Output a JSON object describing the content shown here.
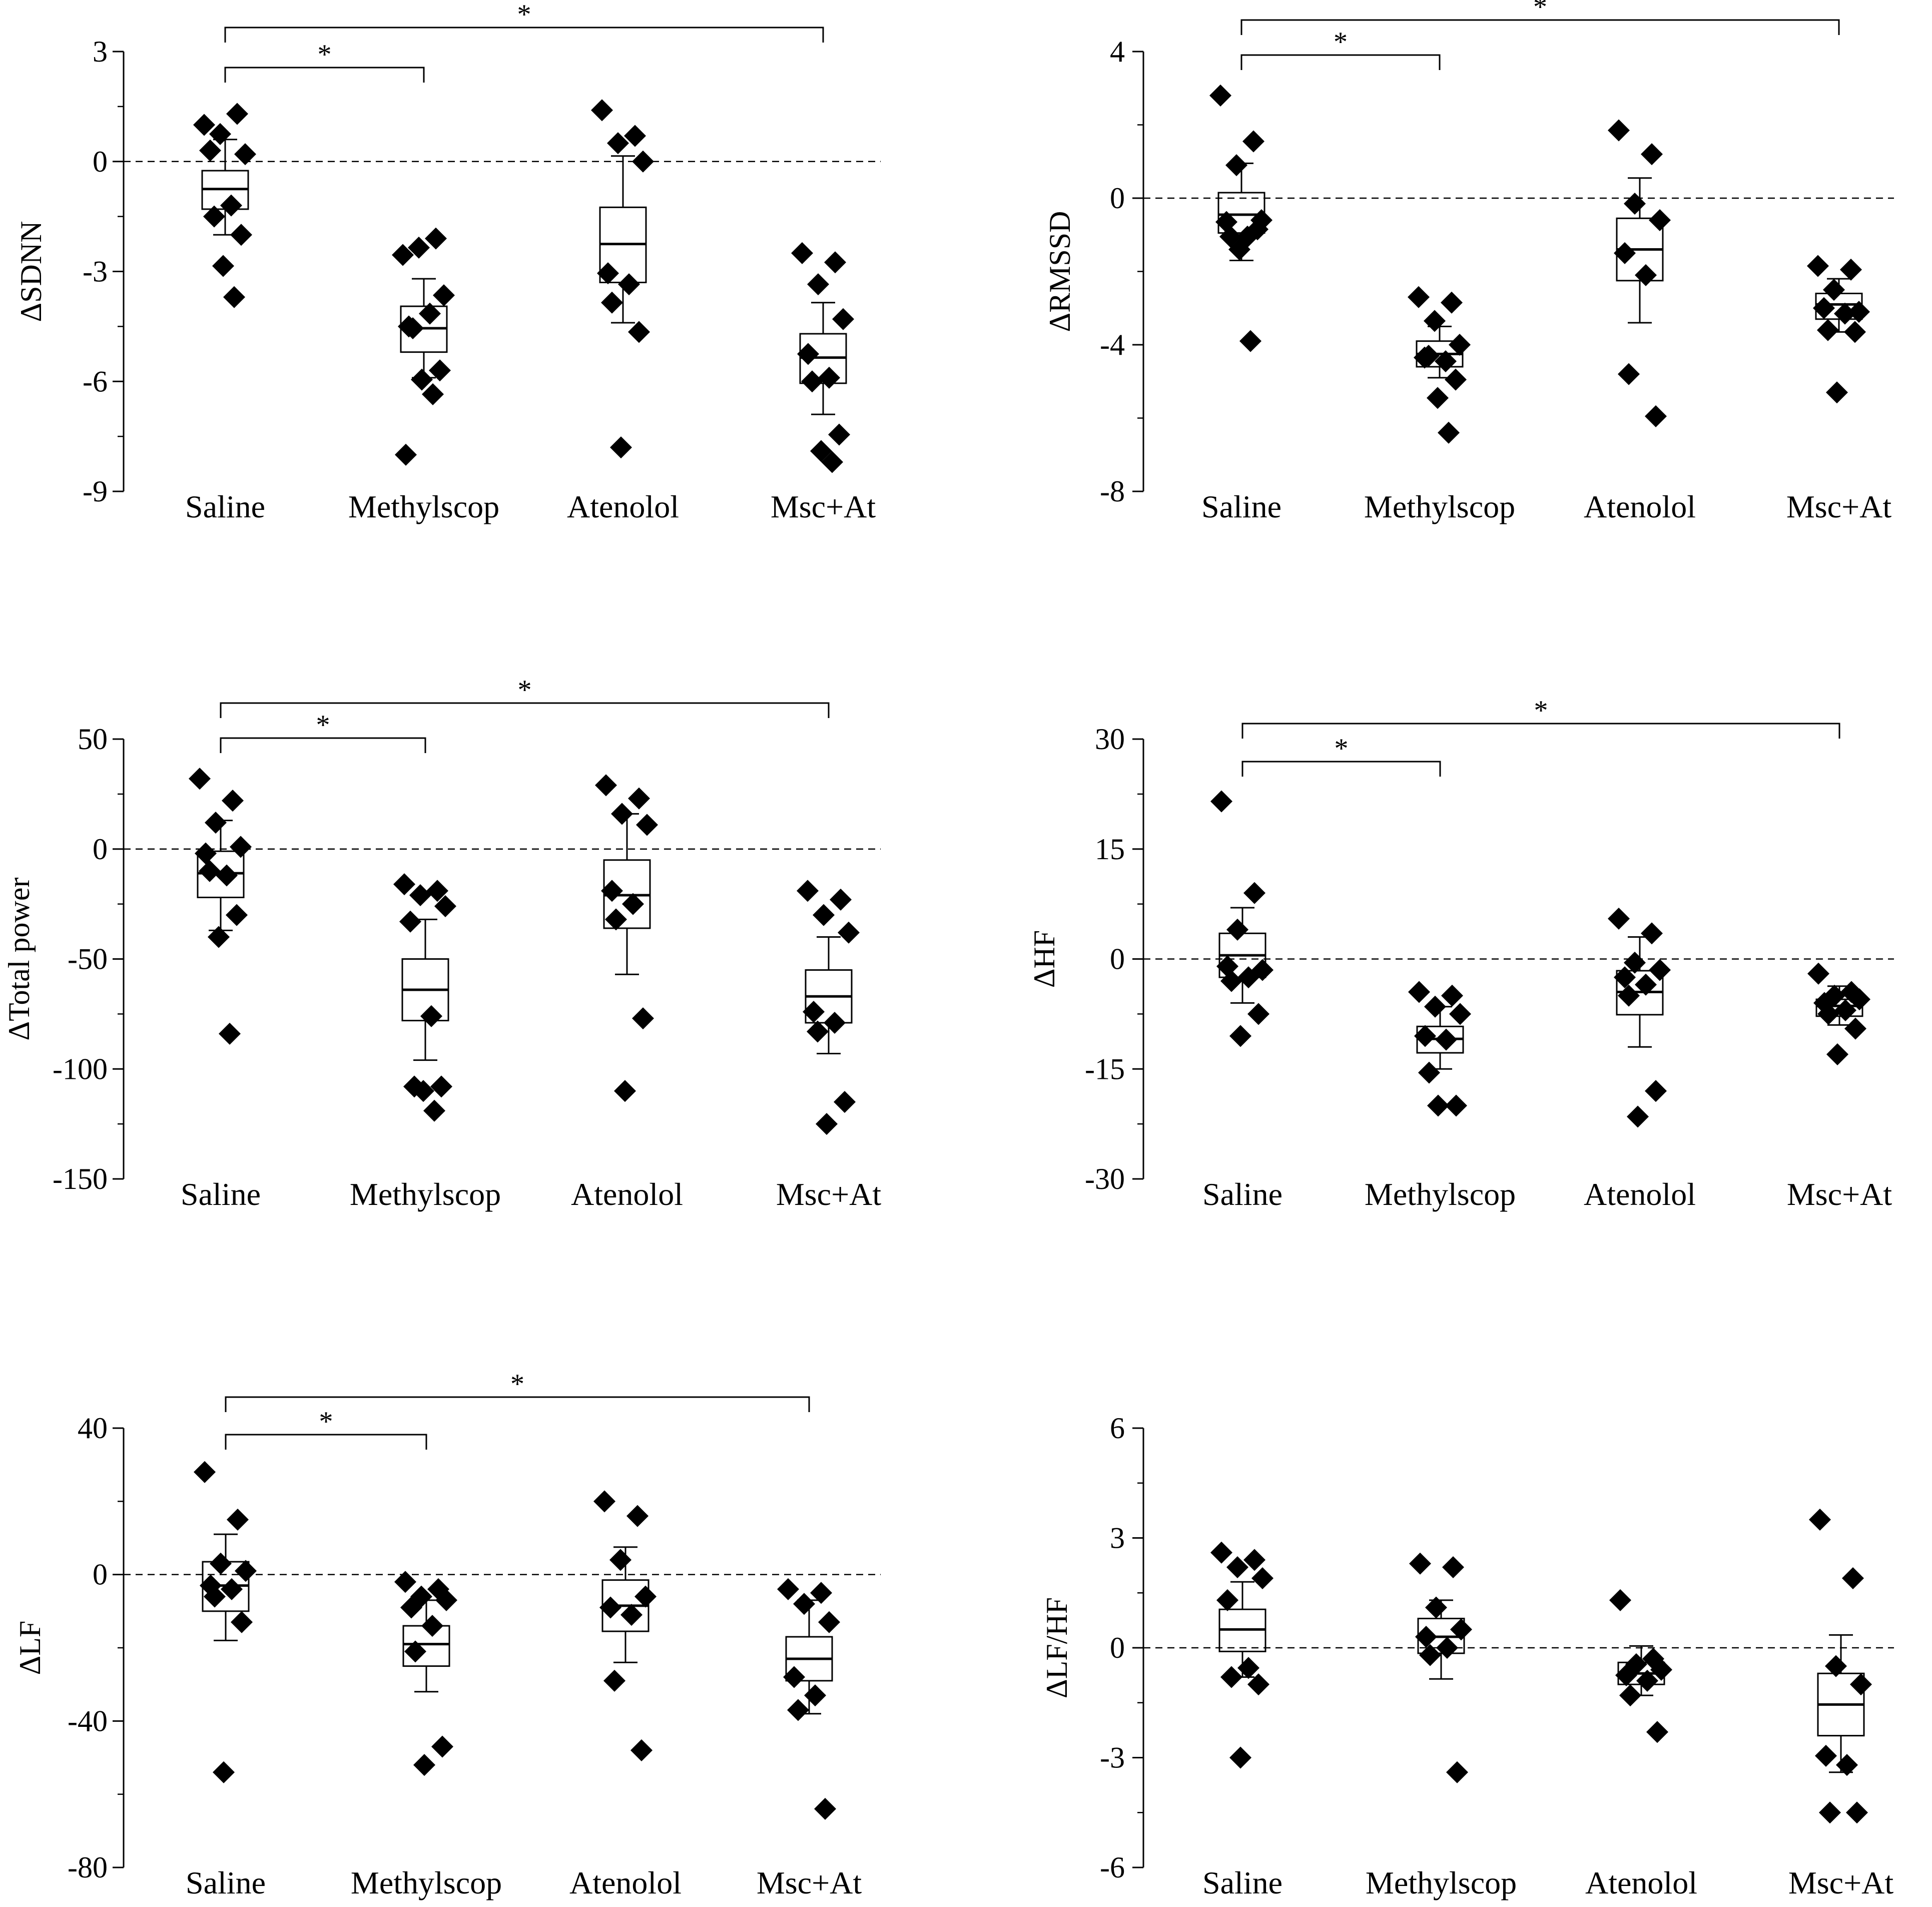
{
  "chart_data": [
    {
      "type": "box",
      "id": "sdnn",
      "title": "",
      "ylabel": "ΔSDNN",
      "xlabel": "",
      "categories": [
        "Saline",
        "Methylscop",
        "Atenolol",
        "Msc+At"
      ],
      "ylim": [
        -9,
        3
      ],
      "yticks": [
        -9,
        -6,
        -3,
        0,
        3
      ],
      "yticklabels": [
        "-9",
        "-6",
        "-3",
        "0",
        "3"
      ],
      "reference_line": 0,
      "boxes": [
        {
          "whisker_low": -2.0,
          "q1": -1.3,
          "median": -0.75,
          "q3": -0.25,
          "whisker_high": 0.6
        },
        {
          "whisker_low": -5.9,
          "q1": -5.2,
          "median": -4.55,
          "q3": -3.95,
          "whisker_high": -3.2
        },
        {
          "whisker_low": -4.4,
          "q1": -3.3,
          "median": -2.25,
          "q3": -1.25,
          "whisker_high": 0.15
        },
        {
          "whisker_low": -6.9,
          "q1": -6.05,
          "median": -5.35,
          "q3": -4.7,
          "whisker_high": -3.85
        }
      ],
      "points": [
        [
          1.0,
          1.3,
          0.75,
          0.2,
          0.3,
          -1.2,
          -1.5,
          -2.0,
          -2.85,
          -3.7
        ],
        [
          -2.55,
          -2.1,
          -2.35,
          -3.65,
          -4.5,
          -4.15,
          -4.55,
          -5.7,
          -5.95,
          -6.35,
          -8.0
        ],
        [
          1.4,
          0.7,
          0.5,
          0.0,
          -3.05,
          -3.35,
          -3.85,
          -4.65,
          -7.8
        ],
        [
          -2.5,
          -2.75,
          -3.35,
          -4.3,
          -5.25,
          -5.9,
          -6.0,
          -7.45,
          -7.9,
          -8.2
        ]
      ],
      "significance": [
        {
          "pair": [
            "Saline",
            "Methylscop"
          ],
          "label": "*"
        },
        {
          "pair": [
            "Saline",
            "Msc+At"
          ],
          "label": "*"
        }
      ]
    },
    {
      "type": "box",
      "id": "rmssd",
      "title": "",
      "ylabel": "ΔRMSSD",
      "xlabel": "",
      "categories": [
        "Saline",
        "Methylscop",
        "Atenolol",
        "Msc+At"
      ],
      "ylim": [
        -8,
        4
      ],
      "yticks": [
        -8,
        -4,
        0,
        4
      ],
      "yticklabels": [
        "-8",
        "-4",
        "0",
        "4"
      ],
      "reference_line": 0,
      "boxes": [
        {
          "whisker_low": -1.7,
          "q1": -0.95,
          "median": -0.45,
          "q3": 0.15,
          "whisker_high": 0.95
        },
        {
          "whisker_low": -4.9,
          "q1": -4.6,
          "median": -4.25,
          "q3": -3.9,
          "whisker_high": -3.5
        },
        {
          "whisker_low": -3.4,
          "q1": -2.25,
          "median": -1.4,
          "q3": -0.55,
          "whisker_high": 0.55
        },
        {
          "whisker_low": -3.65,
          "q1": -3.3,
          "median": -2.9,
          "q3": -2.6,
          "whisker_high": -2.2
        }
      ],
      "points": [
        [
          2.8,
          1.55,
          0.9,
          -0.6,
          -0.65,
          -1.05,
          -1.05,
          -0.85,
          -1.4,
          -3.9
        ],
        [
          -2.7,
          -2.85,
          -3.35,
          -4.0,
          -4.35,
          -4.45,
          -4.3,
          -4.95,
          -5.45,
          -6.4
        ],
        [
          1.85,
          1.2,
          -0.15,
          -0.6,
          -1.5,
          -2.1,
          -4.8,
          -5.95
        ],
        [
          -1.85,
          -1.95,
          -2.5,
          -3.1,
          -3.0,
          -3.15,
          -3.6,
          -3.65,
          -5.3
        ]
      ],
      "significance": [
        {
          "pair": [
            "Saline",
            "Methylscop"
          ],
          "label": "*"
        },
        {
          "pair": [
            "Saline",
            "Msc+At"
          ],
          "label": "*"
        }
      ]
    },
    {
      "type": "box",
      "id": "total_power",
      "title": "",
      "ylabel": "ΔTotal power",
      "xlabel": "",
      "categories": [
        "Saline",
        "Methylscop",
        "Atenolol",
        "Msc+At"
      ],
      "ylim": [
        -150,
        50
      ],
      "yticks": [
        -150,
        -100,
        -50,
        0,
        50
      ],
      "yticklabels": [
        "-150",
        "-100",
        "-50",
        "0",
        "50"
      ],
      "reference_line": 0,
      "boxes": [
        {
          "whisker_low": -37,
          "q1": -22,
          "median": -11,
          "q3": -1,
          "whisker_high": 13
        },
        {
          "whisker_low": -96,
          "q1": -78,
          "median": -64,
          "q3": -50,
          "whisker_high": -32
        },
        {
          "whisker_low": -57,
          "q1": -36,
          "median": -21,
          "q3": -5,
          "whisker_high": 16
        },
        {
          "whisker_low": -93,
          "q1": -79,
          "median": -67,
          "q3": -55,
          "whisker_high": -40
        }
      ],
      "points": [
        [
          32,
          22,
          12,
          1,
          -2,
          -12,
          -10,
          -30,
          -40,
          -84
        ],
        [
          -16,
          -19,
          -21,
          -26,
          -33,
          -76,
          -108,
          -108,
          -110,
          -119
        ],
        [
          29,
          23,
          16,
          11,
          -19,
          -25,
          -32,
          -77,
          -110
        ],
        [
          -19,
          -23,
          -30,
          -38,
          -74,
          -79,
          -83,
          -115,
          -125
        ]
      ],
      "significance": [
        {
          "pair": [
            "Saline",
            "Methylscop"
          ],
          "label": "*"
        },
        {
          "pair": [
            "Saline",
            "Msc+At"
          ],
          "label": "*"
        }
      ]
    },
    {
      "type": "box",
      "id": "hf",
      "title": "",
      "ylabel": "ΔHF",
      "xlabel": "",
      "categories": [
        "Saline",
        "Methylscop",
        "Atenolol",
        "Msc+At"
      ],
      "ylim": [
        -30,
        30
      ],
      "yticks": [
        -30,
        -15,
        0,
        15,
        30
      ],
      "yticklabels": [
        "-30",
        "-15",
        "0",
        "15",
        "30"
      ],
      "reference_line": 0,
      "boxes": [
        {
          "whisker_low": -6,
          "q1": -2.5,
          "median": 0.5,
          "q3": 3.5,
          "whisker_high": 7
        },
        {
          "whisker_low": -15,
          "q1": -12.8,
          "median": -10.9,
          "q3": -9.2,
          "whisker_high": -6.5
        },
        {
          "whisker_low": -12,
          "q1": -7.6,
          "median": -4.5,
          "q3": -1.6,
          "whisker_high": 3
        },
        {
          "whisker_low": -9,
          "q1": -7.8,
          "median": -6.4,
          "q3": -5.5,
          "whisker_high": -3.7
        }
      ],
      "points": [
        [
          21.5,
          9,
          4,
          -1.5,
          -1,
          -2.5,
          -3,
          -7.5,
          -10.5
        ],
        [
          -4.5,
          -5,
          -6.5,
          -7.5,
          -10.5,
          -11,
          -15.5,
          -20,
          -20
        ],
        [
          5.5,
          3.5,
          -0.5,
          -1.5,
          -2.5,
          -3.5,
          -5,
          -18,
          -21.5
        ],
        [
          -2,
          -4.5,
          -5,
          -5.5,
          -6,
          -7,
          -7.5,
          -9.5,
          -13
        ]
      ],
      "significance": [
        {
          "pair": [
            "Saline",
            "Methylscop"
          ],
          "label": "*"
        },
        {
          "pair": [
            "Saline",
            "Msc+At"
          ],
          "label": "*"
        }
      ]
    },
    {
      "type": "box",
      "id": "lf",
      "title": "",
      "ylabel": "ΔLF",
      "xlabel": "",
      "categories": [
        "Saline",
        "Methylscop",
        "Atenolol",
        "Msc+At"
      ],
      "ylim": [
        -80,
        40
      ],
      "yticks": [
        -80,
        -40,
        0,
        40
      ],
      "yticklabels": [
        "-80",
        "-40",
        "0",
        "40"
      ],
      "reference_line": 0,
      "boxes": [
        {
          "whisker_low": -18,
          "q1": -10,
          "median": -3,
          "q3": 3.5,
          "whisker_high": 11
        },
        {
          "whisker_low": -32,
          "q1": -25,
          "median": -19,
          "q3": -14,
          "whisker_high": -7
        },
        {
          "whisker_low": -24,
          "q1": -15.5,
          "median": -8.5,
          "q3": -1.5,
          "whisker_high": 7.5
        },
        {
          "whisker_low": -38,
          "q1": -29,
          "median": -23,
          "q3": -17,
          "whisker_high": -7
        }
      ],
      "points": [
        [
          28,
          15,
          3,
          1,
          -3,
          -4,
          -6,
          -13,
          -54
        ],
        [
          -2,
          -4,
          -6,
          -7,
          -9,
          -14,
          -21,
          -47,
          -52
        ],
        [
          20,
          16,
          4,
          -6,
          -9,
          -11,
          -29,
          -48
        ],
        [
          -4,
          -5,
          -8,
          -13,
          -28,
          -33,
          -37,
          -64
        ]
      ],
      "significance": [
        {
          "pair": [
            "Saline",
            "Methylscop"
          ],
          "label": "*"
        },
        {
          "pair": [
            "Saline",
            "Msc+At"
          ],
          "label": "*"
        }
      ]
    },
    {
      "type": "box",
      "id": "lf_hf",
      "title": "",
      "ylabel": "ΔLF/HF",
      "xlabel": "",
      "categories": [
        "Saline",
        "Methylscop",
        "Atenolol",
        "Msc+At"
      ],
      "ylim": [
        -6,
        6
      ],
      "yticks": [
        -6,
        -3,
        0,
        3,
        6
      ],
      "yticklabels": [
        "-6",
        "-3",
        "0",
        "3",
        "6"
      ],
      "reference_line": 0,
      "boxes": [
        {
          "whisker_low": -0.8,
          "q1": -0.1,
          "median": 0.5,
          "q3": 1.05,
          "whisker_high": 1.8
        },
        {
          "whisker_low": -0.85,
          "q1": -0.15,
          "median": 0.3,
          "q3": 0.8,
          "whisker_high": 1.3
        },
        {
          "whisker_low": -1.3,
          "q1": -1.0,
          "median": -0.7,
          "q3": -0.4,
          "whisker_high": 0.05
        },
        {
          "whisker_low": -3.4,
          "q1": -2.4,
          "median": -1.55,
          "q3": -0.7,
          "whisker_high": 0.35
        }
      ],
      "points": [
        [
          2.6,
          2.4,
          2.2,
          1.9,
          1.3,
          -0.55,
          -0.8,
          -1.0,
          -3.0
        ],
        [
          2.3,
          2.2,
          1.1,
          0.5,
          0.3,
          0.0,
          -0.2,
          -3.4
        ],
        [
          1.3,
          -0.3,
          -0.45,
          -0.6,
          -0.75,
          -0.9,
          -1.3,
          -2.3
        ],
        [
          3.5,
          1.9,
          -0.5,
          -1.0,
          -2.95,
          -3.2,
          -4.5,
          -4.5
        ]
      ],
      "significance": []
    }
  ]
}
